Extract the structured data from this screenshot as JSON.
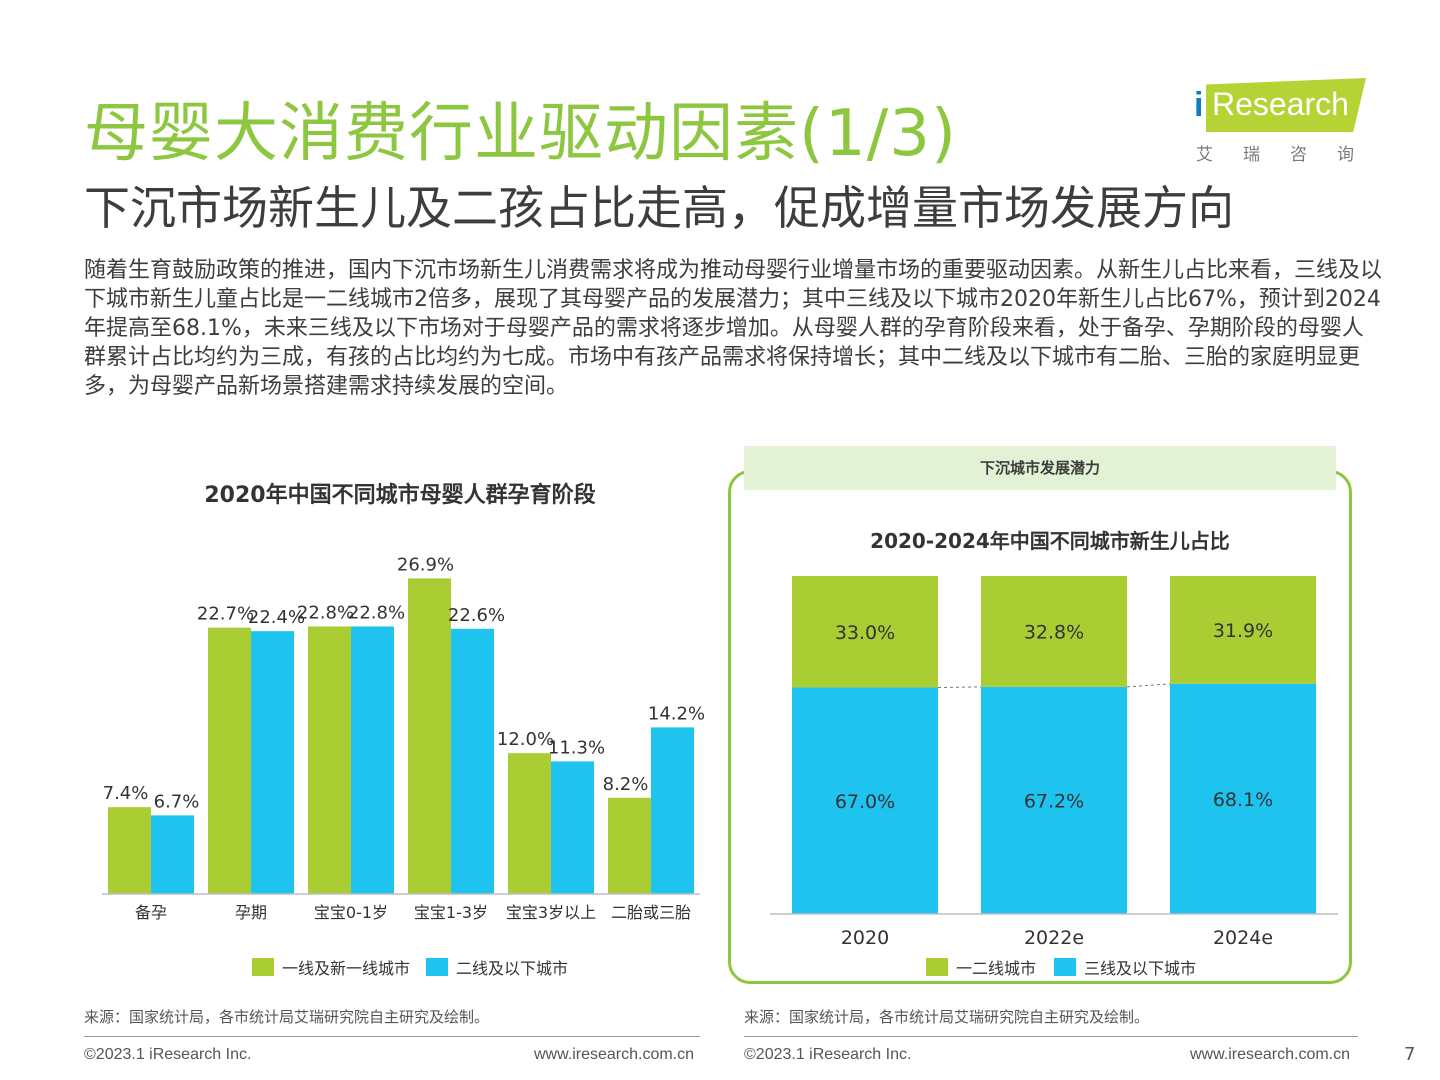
{
  "page": {
    "title": "母婴大消费行业驱动因素(1/3)",
    "subtitle": "下沉市场新生儿及二孩占比走高，促成增量市场发展方向",
    "body": "随着生育鼓励政策的推进，国内下沉市场新生儿消费需求将成为推动母婴行业增量市场的重要驱动因素。从新生儿占比来看，三线及以下城市新生儿童占比是一二线城市2倍多，展现了其母婴产品的发展潜力；其中三线及以下城市2020年新生儿占比67%，预计到2024年提高至68.1%，未来三线及以下市场对于母婴产品的需求将逐步增加。从母婴人群的孕育阶段来看，处于备孕、孕期阶段的母婴人群累计占比均约为三成，有孩的占比均约为七成。市场中有孩产品需求将保持增长；其中二线及以下城市有二胎、三胎的家庭明显更多，为母婴产品新场景搭建需求持续发展的空间。",
    "right_panel_header": "下沉城市发展潜力",
    "source_left": "来源：国家统计局，各市统计局艾瑞研究院自主研究及绘制。",
    "source_right": "来源：国家统计局，各市统计局艾瑞研究院自主研究及绘制。",
    "footer_copyright_left": "©2023.1 iResearch Inc.",
    "footer_url_left": "www.iresearch.com.cn",
    "footer_copyright_right": "©2023.1 iResearch Inc.",
    "footer_url_right": "www.iresearch.com.cn",
    "page_number": "7"
  },
  "logo": {
    "mark": "i",
    "text": "Research",
    "cn": "艾瑞咨询"
  },
  "colors": {
    "green": "#a9cd33",
    "blue": "#1ec3ef",
    "title_green": "#8dc63f"
  },
  "chart_data": [
    {
      "type": "bar",
      "title": "2020年中国不同城市母婴人群孕育阶段",
      "categories": [
        "备孕",
        "孕期",
        "宝宝0-1岁",
        "宝宝1-3岁",
        "宝宝3岁以上",
        "二胎或三胎"
      ],
      "series": [
        {
          "name": "一线及新一线城市",
          "values": [
            7.4,
            22.7,
            22.8,
            26.9,
            12.0,
            8.2
          ],
          "labels": [
            "7.4%",
            "22.7%",
            "22.8%",
            "26.9%",
            "12.0%",
            "8.2%"
          ],
          "color": "#a9cd33"
        },
        {
          "name": "二线及以下城市",
          "values": [
            6.7,
            22.4,
            22.8,
            22.6,
            11.3,
            14.2
          ],
          "labels": [
            "6.7%",
            "22.4%",
            "22.8%",
            "22.6%",
            "11.3%",
            "14.2%"
          ],
          "color": "#1ec3ef"
        }
      ],
      "ylim": [
        0,
        30
      ],
      "legend": "bottom",
      "grid": false
    },
    {
      "type": "bar",
      "stacked": true,
      "title": "2020-2024年中国不同城市新生儿占比",
      "categories": [
        "2020",
        "2022e",
        "2024e"
      ],
      "series": [
        {
          "name": "三线及以下城市",
          "values": [
            67.0,
            67.2,
            68.1
          ],
          "labels": [
            "67.0%",
            "67.2%",
            "68.1%"
          ],
          "color": "#1ec3ef"
        },
        {
          "name": "一二线城市",
          "values": [
            33.0,
            32.8,
            31.9
          ],
          "labels": [
            "33.0%",
            "32.8%",
            "31.9%"
          ],
          "color": "#a9cd33"
        }
      ],
      "legend_order": [
        "一二线城市",
        "三线及以下城市"
      ],
      "ylim": [
        0,
        100
      ],
      "legend": "bottom",
      "grid": false
    }
  ]
}
